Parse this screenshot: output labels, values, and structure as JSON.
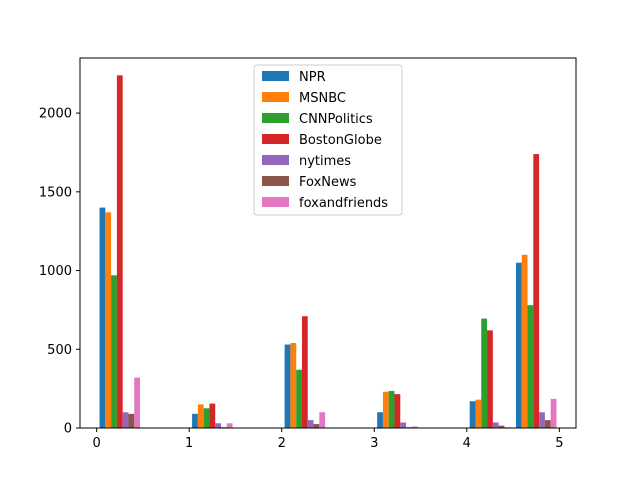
{
  "chart_data": {
    "type": "bar",
    "title": "",
    "xlabel": "",
    "ylabel": "",
    "xlim": [
      -0.18,
      5.18
    ],
    "ylim": [
      0,
      2350
    ],
    "x_ticks": [
      0,
      1,
      2,
      3,
      4,
      5
    ],
    "y_ticks": [
      0,
      500,
      1000,
      1500,
      2000
    ],
    "grid": false,
    "legend_position": "upper center",
    "bar_width": 0.0625,
    "groups": [
      {
        "x": 0.0625
      },
      {
        "x": 1.0625
      },
      {
        "x": 2.0625
      },
      {
        "x": 3.0625
      },
      {
        "x": 4.0625
      },
      {
        "x": 4.5625
      }
    ],
    "series": [
      {
        "name": "NPR",
        "color": "#1f77b4",
        "values": [
          1400,
          90,
          530,
          100,
          170,
          1050
        ]
      },
      {
        "name": "MSNBC",
        "color": "#ff7f0e",
        "values": [
          1370,
          150,
          540,
          230,
          180,
          1100
        ]
      },
      {
        "name": "CNNPolitics",
        "color": "#2ca02c",
        "values": [
          970,
          125,
          370,
          235,
          695,
          780
        ]
      },
      {
        "name": "BostonGlobe",
        "color": "#d62728",
        "values": [
          2240,
          155,
          710,
          215,
          620,
          1740
        ]
      },
      {
        "name": "nytimes",
        "color": "#9467bd",
        "values": [
          100,
          30,
          50,
          35,
          35,
          100
        ]
      },
      {
        "name": "FoxNews",
        "color": "#8c564b",
        "values": [
          90,
          5,
          25,
          5,
          15,
          50
        ]
      },
      {
        "name": "foxandfriends",
        "color": "#e377c2",
        "values": [
          320,
          30,
          100,
          10,
          5,
          185
        ]
      }
    ]
  }
}
